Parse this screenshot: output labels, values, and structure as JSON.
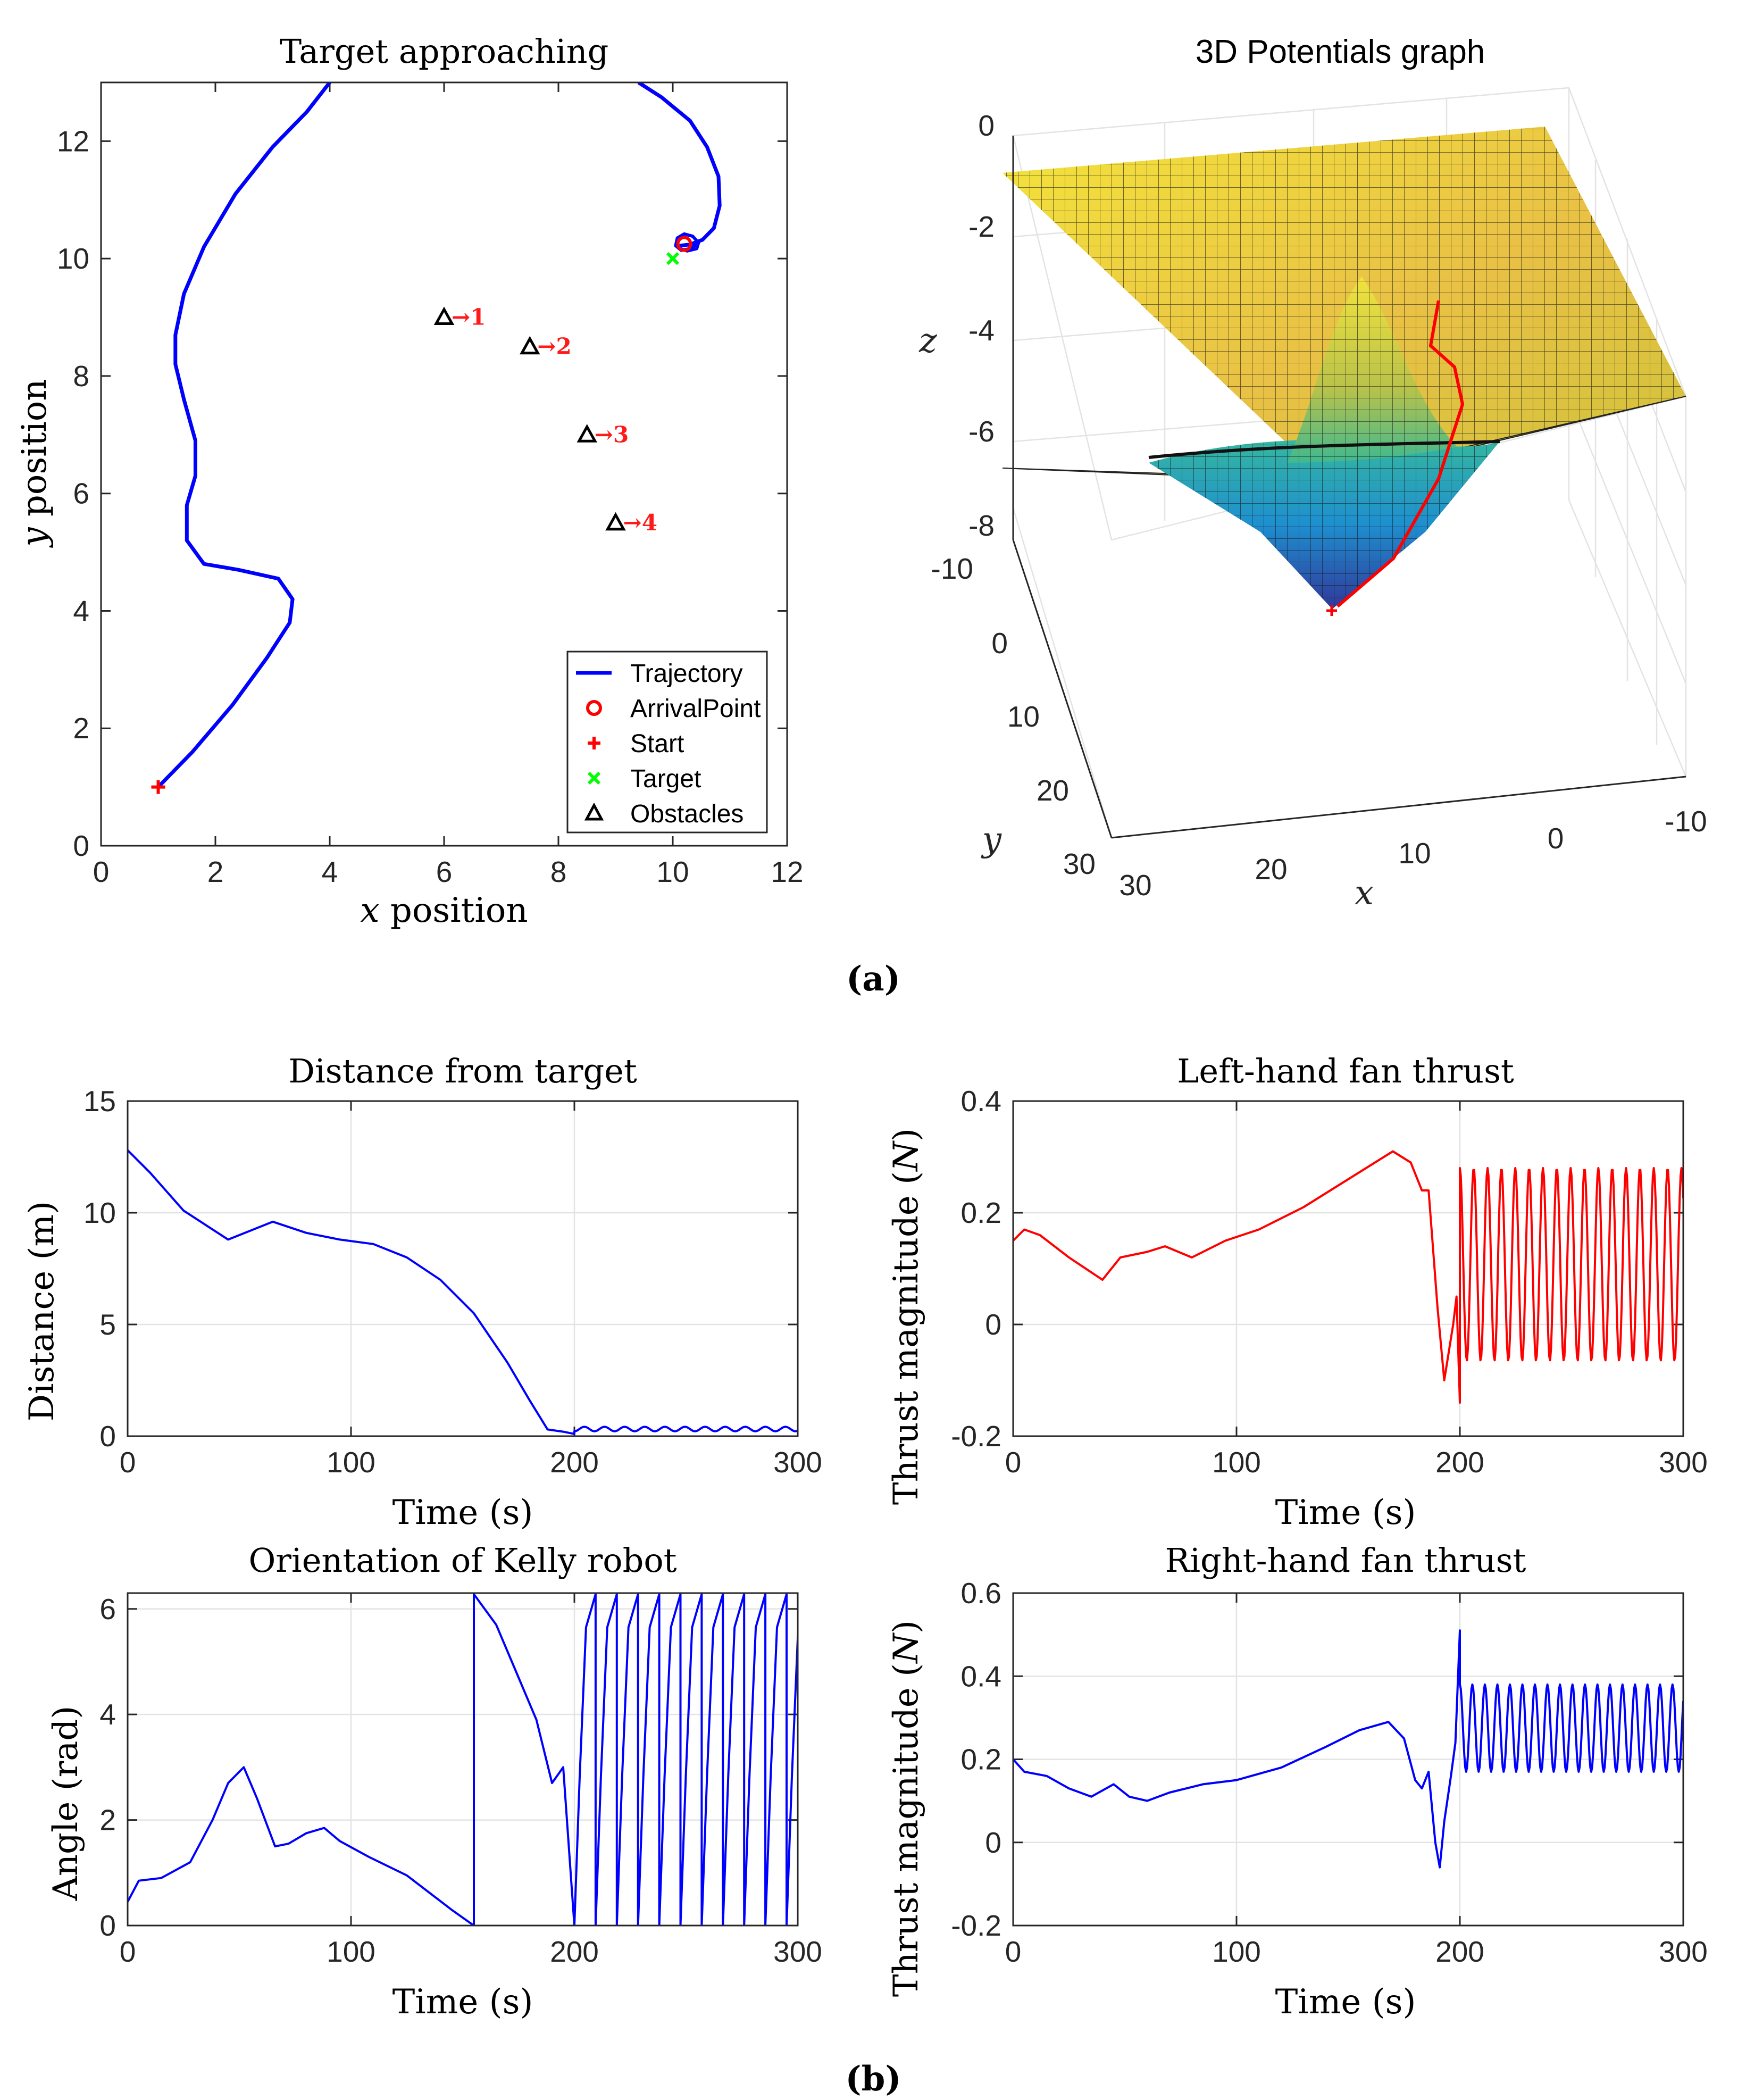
{
  "figure": {
    "subfig_a_label": "(a)",
    "subfig_b_label": "(b)"
  },
  "chart_data": [
    {
      "id": "trajectory",
      "type": "line",
      "title": "Target approaching",
      "xlabel_math": "x",
      "xlabel_text": " position",
      "ylabel_math": "y",
      "ylabel_text": " position",
      "xlim": [
        0,
        12
      ],
      "ylim": [
        0,
        13
      ],
      "xticks": [
        0,
        2,
        4,
        6,
        8,
        10,
        12
      ],
      "yticks": [
        0,
        2,
        4,
        6,
        8,
        10,
        12
      ],
      "grid": false,
      "trajectory": {
        "name": "Trajectory",
        "color": "#0000ff",
        "x": [
          1.0,
          1.6,
          2.3,
          2.9,
          3.3,
          3.35,
          3.1,
          2.4,
          1.8,
          1.5,
          1.5,
          1.65,
          1.65,
          1.45,
          1.3,
          1.3,
          1.45,
          1.8,
          2.35,
          3.0,
          3.6,
          4.0
        ],
        "y": [
          1.0,
          1.6,
          2.4,
          3.2,
          3.8,
          4.2,
          4.55,
          4.7,
          4.8,
          5.2,
          5.8,
          6.3,
          6.9,
          7.6,
          8.2,
          8.7,
          9.4,
          10.2,
          11.1,
          11.9,
          12.5,
          13.0
        ]
      },
      "trajectory_loop": {
        "x": [
          9.4,
          9.8,
          10.3,
          10.6,
          10.8,
          10.82,
          10.72,
          10.52,
          10.3,
          10.12
        ],
        "y": [
          13.0,
          12.75,
          12.35,
          11.9,
          11.4,
          10.9,
          10.52,
          10.32,
          10.24,
          10.22
        ]
      },
      "trajectory_knot": {
        "x": [
          10.1,
          10.25,
          10.42,
          10.45,
          10.35,
          10.2,
          10.08,
          10.05,
          10.15,
          10.3,
          10.43
        ],
        "y": [
          10.18,
          10.13,
          10.17,
          10.27,
          10.38,
          10.42,
          10.35,
          10.22,
          10.14,
          10.17,
          10.25
        ]
      },
      "arrival_point": {
        "name": "ArrivalPoint",
        "x": 10.2,
        "y": 10.25,
        "color": "#ff0000"
      },
      "start": {
        "name": "Start",
        "x": 1.0,
        "y": 1.0,
        "color": "#ff0000"
      },
      "target": {
        "name": "Target",
        "x": 10.0,
        "y": 10.0,
        "color": "#00ff00"
      },
      "obstacles": {
        "name": "Obstacles",
        "color": "#000000",
        "x": [
          6.0,
          7.5,
          8.5,
          9.0
        ],
        "y": [
          9.0,
          8.5,
          7.0,
          5.5
        ],
        "labels": [
          "→1",
          "→2",
          "→3",
          "→4"
        ],
        "label_color": "#ff1a1a"
      },
      "legend": [
        "Trajectory",
        "ArrivalPoint",
        "Start",
        "Target",
        "Obstacles"
      ],
      "legend_location": "bottom-right"
    },
    {
      "id": "potentials",
      "type": "surface",
      "title": "3D Potentials graph",
      "xlabel": "x",
      "ylabel": "y",
      "zlabel": "z",
      "xlim": [
        -10,
        30
      ],
      "ylim": [
        -10,
        30
      ],
      "zlim": [
        -8,
        0
      ],
      "xticks": [
        "30",
        "20",
        "10",
        "0",
        "-10"
      ],
      "yticks": [
        "-10",
        "0",
        "10",
        "20",
        "30"
      ],
      "zticks": [
        "0",
        "-2",
        "-4",
        "-6",
        "-8"
      ],
      "colormap": "parula",
      "trace_color": "#ff0000"
    },
    {
      "id": "distance",
      "type": "line",
      "title": "Distance from target",
      "xlabel": "Time (s)",
      "ylabel": "Distance (m)",
      "xlim": [
        0,
        300
      ],
      "ylim": [
        0,
        15
      ],
      "xticks": [
        0,
        100,
        200,
        300
      ],
      "yticks": [
        0,
        5,
        10,
        15
      ],
      "grid": true,
      "series": [
        {
          "name": "distance",
          "color": "#0000ff",
          "x": [
            0,
            10,
            25,
            45,
            65,
            80,
            95,
            110,
            125,
            140,
            155,
            170,
            180,
            188,
            195,
            200
          ],
          "y": [
            12.8,
            11.8,
            10.1,
            8.8,
            9.6,
            9.1,
            8.8,
            8.6,
            8.0,
            7.0,
            5.5,
            3.3,
            1.6,
            0.3,
            0.2,
            0.1
          ]
        }
      ],
      "osc": {
        "x_start": 200,
        "x_end": 300,
        "base": 0.32,
        "amplitude": 0.1,
        "period": 9
      }
    },
    {
      "id": "left_thrust",
      "type": "line",
      "title": "Left-hand fan thrust",
      "xlabel": "Time (s)",
      "ylabel": "Thrust magnitude (",
      "ylabel_math": "N",
      "ylabel_end": ")",
      "xlim": [
        0,
        300
      ],
      "ylim": [
        -0.2,
        0.4
      ],
      "xticks": [
        0,
        100,
        200,
        300
      ],
      "yticks": [
        "-0.2",
        "0",
        "0.2",
        "0.4"
      ],
      "grid": true,
      "series": [
        {
          "name": "left",
          "color": "#ff0000",
          "x": [
            0,
            5,
            12,
            25,
            40,
            48,
            60,
            68,
            80,
            95,
            110,
            130,
            150,
            170,
            178,
            183,
            186,
            190,
            193,
            195,
            197,
            198.5,
            200
          ],
          "y": [
            0.15,
            0.17,
            0.16,
            0.12,
            0.08,
            0.12,
            0.13,
            0.14,
            0.12,
            0.15,
            0.17,
            0.21,
            0.26,
            0.31,
            0.29,
            0.24,
            0.24,
            0.03,
            -0.1,
            -0.05,
            0.0,
            0.05,
            -0.14
          ]
        }
      ],
      "osc": {
        "x_start": 200,
        "x_end": 300,
        "low": -0.065,
        "high": 0.28,
        "period": 6.2
      }
    },
    {
      "id": "orientation",
      "type": "line",
      "title": "Orientation of Kelly robot",
      "xlabel": "Time (s)",
      "ylabel": "Angle (rad)",
      "xlim": [
        0,
        300
      ],
      "ylim": [
        0,
        6.3
      ],
      "xticks": [
        0,
        100,
        200,
        300
      ],
      "yticks": [
        0,
        2,
        4,
        6
      ],
      "grid": true,
      "series": [
        {
          "name": "angle",
          "color": "#0000ff",
          "x": [
            0,
            5,
            15,
            28,
            38,
            45,
            52,
            58,
            66,
            72,
            80,
            88,
            95,
            108,
            125,
            145,
            155,
            155,
            165,
            175,
            183,
            190,
            195,
            200
          ],
          "y": [
            0.45,
            0.85,
            0.9,
            1.2,
            2.0,
            2.7,
            3.0,
            2.4,
            1.5,
            1.55,
            1.75,
            1.85,
            1.6,
            1.3,
            0.95,
            0.3,
            0.0,
            6.28,
            5.7,
            4.7,
            3.9,
            2.7,
            3.0,
            0.0
          ]
        }
      ],
      "sawtooth": {
        "x_start": 200,
        "x_end": 300,
        "max": 6.28,
        "period": 9.5
      }
    },
    {
      "id": "right_thrust",
      "type": "line",
      "title": "Right-hand fan thrust",
      "xlabel": "Time (s)",
      "ylabel": "Thrust magnitude (",
      "ylabel_math": "N",
      "ylabel_end": ")",
      "xlim": [
        0,
        300
      ],
      "ylim": [
        -0.2,
        0.6
      ],
      "xticks": [
        0,
        100,
        200,
        300
      ],
      "yticks": [
        "-0.2",
        "0",
        "0.2",
        "0.4",
        "0.6"
      ],
      "grid": true,
      "series": [
        {
          "name": "right",
          "color": "#0000ff",
          "x": [
            0,
            5,
            15,
            25,
            35,
            45,
            52,
            60,
            70,
            85,
            100,
            120,
            140,
            155,
            168,
            175,
            180,
            183,
            186,
            189,
            191,
            193,
            196,
            198,
            200
          ],
          "y": [
            0.2,
            0.17,
            0.16,
            0.13,
            0.11,
            0.14,
            0.11,
            0.1,
            0.12,
            0.14,
            0.15,
            0.18,
            0.23,
            0.27,
            0.29,
            0.25,
            0.15,
            0.13,
            0.17,
            0.0,
            -0.06,
            0.05,
            0.16,
            0.24,
            0.51
          ]
        }
      ],
      "osc": {
        "x_start": 200,
        "x_end": 300,
        "low": 0.17,
        "high": 0.38,
        "period": 5.6
      }
    }
  ]
}
